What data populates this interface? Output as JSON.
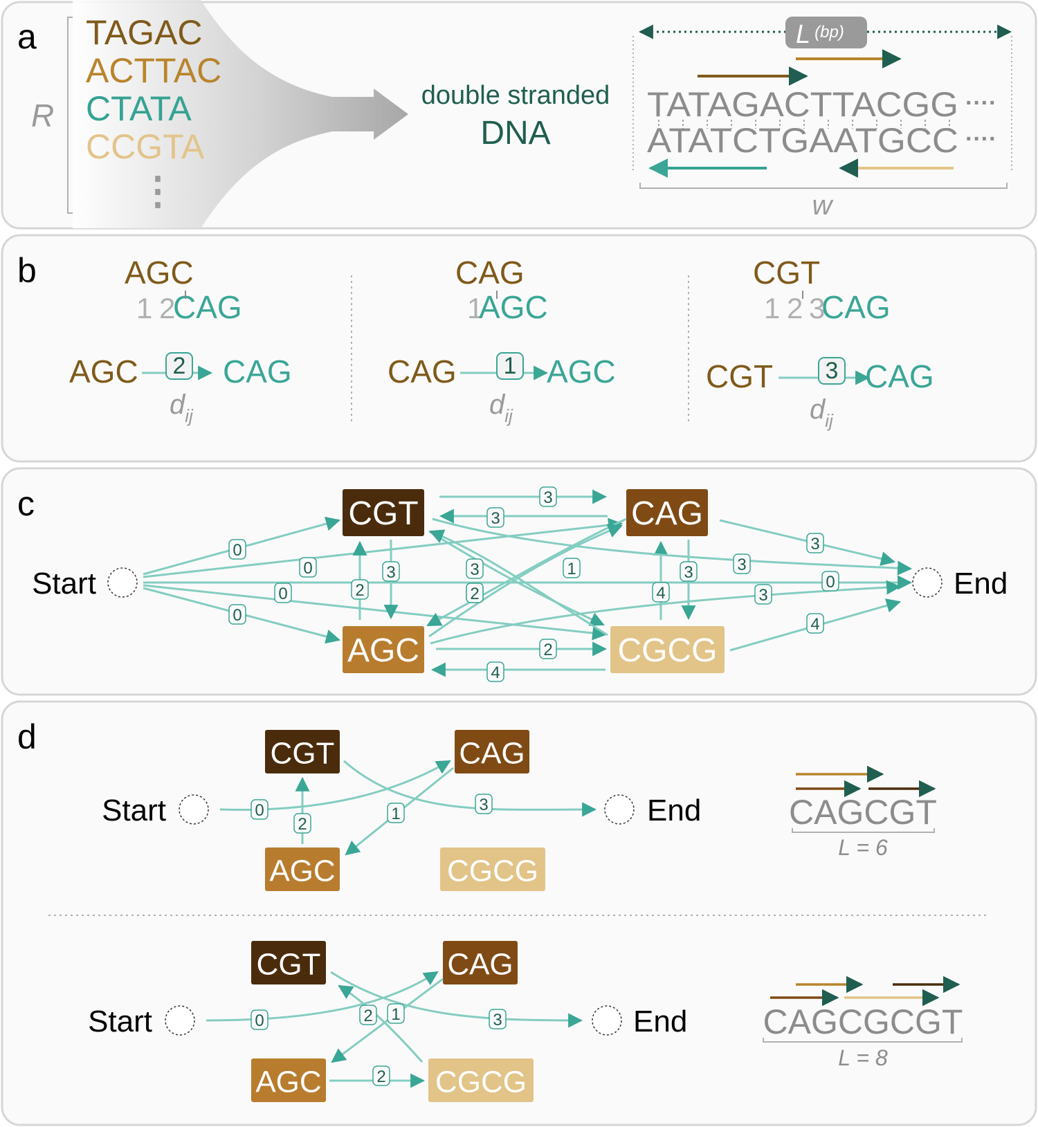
{
  "panel_a": {
    "label": "a",
    "set_label": "R",
    "reads": [
      "TAGAC",
      "ACTTAC",
      "CTATA",
      "CCGTA"
    ],
    "ellipsis": "⋮",
    "product_line1": "double stranded",
    "product_line2": "DNA",
    "length_label": "L",
    "length_unit": "(bp)",
    "top_strand": "TATAGACTTACGG",
    "bottom_strand": "ATATCTGAATGCC",
    "strand_dots": "····",
    "width_label": "w"
  },
  "panel_b": {
    "label": "b",
    "edge_weight_symbol": "d",
    "edge_weight_subscript": "ij",
    "examples": [
      {
        "top": "AGC",
        "offset_digits": [
          "1",
          "2"
        ],
        "shifted": "CAG",
        "from": "AGC",
        "to": "CAG",
        "weight": "2"
      },
      {
        "top": "CAG",
        "offset_digits": [
          "1"
        ],
        "shifted": "AGC",
        "from": "CAG",
        "to": "AGC",
        "weight": "1"
      },
      {
        "top": "CGT",
        "offset_digits": [
          "1",
          "2",
          "3"
        ],
        "shifted": "CAG",
        "from": "CGT",
        "to": "CAG",
        "weight": "3"
      }
    ]
  },
  "panel_c": {
    "label": "c",
    "start_label": "Start",
    "end_label": "End",
    "nodes": [
      "CGT",
      "CAG",
      "AGC",
      "CGCG"
    ],
    "edges": [
      {
        "from": "Start",
        "to": "CGT",
        "weight": "0"
      },
      {
        "from": "Start",
        "to": "CAG",
        "weight": "0"
      },
      {
        "from": "Start",
        "to": "AGC",
        "weight": "0"
      },
      {
        "from": "Start",
        "to": "CGCG",
        "weight": "0"
      },
      {
        "from": "Start",
        "to": "End",
        "weight": "0"
      },
      {
        "from": "CGT",
        "to": "CAG",
        "weight": "3"
      },
      {
        "from": "CAG",
        "to": "CGT",
        "weight": "3"
      },
      {
        "from": "CGT",
        "to": "AGC",
        "weight": "3"
      },
      {
        "from": "AGC",
        "to": "CGT",
        "weight": "2"
      },
      {
        "from": "CGT",
        "to": "CGCG",
        "weight": "3"
      },
      {
        "from": "CGCG",
        "to": "CGT",
        "weight": "2"
      },
      {
        "from": "CAG",
        "to": "AGC",
        "weight": "1"
      },
      {
        "from": "AGC",
        "to": "CAG",
        "weight": "2"
      },
      {
        "from": "CAG",
        "to": "CGCG",
        "weight": "3"
      },
      {
        "from": "CGCG",
        "to": "CAG",
        "weight": "4"
      },
      {
        "from": "AGC",
        "to": "CGCG",
        "weight": "2"
      },
      {
        "from": "CGCG",
        "to": "AGC",
        "weight": "4"
      },
      {
        "from": "CGT",
        "to": "End",
        "weight": "3"
      },
      {
        "from": "CAG",
        "to": "End",
        "weight": "3"
      },
      {
        "from": "AGC",
        "to": "End",
        "weight": "3"
      },
      {
        "from": "CGCG",
        "to": "End",
        "weight": "4"
      }
    ]
  },
  "panel_d": {
    "label": "d",
    "start_label": "Start",
    "end_label": "End",
    "path1": {
      "nodes": [
        "CGT",
        "CAG",
        "AGC",
        "CGCG"
      ],
      "weights": [
        "0",
        "1",
        "2",
        "3"
      ],
      "sequence": "CAGCGT",
      "length_text": "L = 6"
    },
    "path2": {
      "nodes": [
        "CGT",
        "CAG",
        "AGC",
        "CGCG"
      ],
      "weights": [
        "0",
        "2",
        "1",
        "2",
        "3"
      ],
      "sequence": "CAGCGCGT",
      "length_text": "L = 8"
    }
  },
  "colors": {
    "CGT": "#4a2c0c",
    "CAG": "#7f4a14",
    "AGC": "#b87c2e",
    "CGCG": "#e2c488",
    "TAGAC": "#7f5a1a",
    "ACTTAC": "#b9842c",
    "CTATA": "#35a293",
    "CCGTA": "#e3c48a",
    "teal": "#3aa696",
    "edge": "#84cdc1",
    "dark_teal": "#1f5e50",
    "gray": "#8c8c8c",
    "panel_bg": "#fafafa",
    "panel_border": "#d6d6d6"
  }
}
